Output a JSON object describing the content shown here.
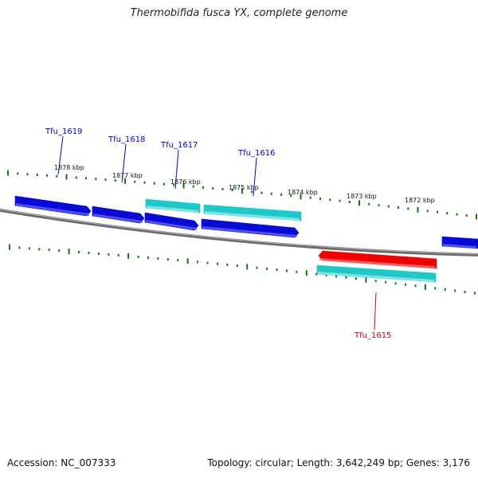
{
  "title": "Thermobifida fusca YX, complete genome",
  "footer": {
    "accession": "Accession: NC_007333",
    "topology": "Topology: circular; Length: 3,642,249 bp; Genes: 3,176"
  },
  "colors": {
    "forward_cds": "#0a0ad6",
    "forward_other": "#1fc7c7",
    "reverse_cds": "#ee0000",
    "reverse_other": "#1fc7c7",
    "ticks": "#117711",
    "backbone": "#808080",
    "label_forward": "#0000cc",
    "label_reverse": "#cc0000"
  },
  "scale_labels": [
    "1878 kbp",
    "1877 kbp",
    "1876 kbp",
    "1875 kbp",
    "1874 kbp",
    "1873 kbp",
    "1872 kbp"
  ],
  "gene_labels": [
    {
      "name": "Tfu_1619",
      "strand": "forward"
    },
    {
      "name": "Tfu_1618",
      "strand": "forward"
    },
    {
      "name": "Tfu_1617",
      "strand": "forward"
    },
    {
      "name": "Tfu_1616",
      "strand": "forward"
    },
    {
      "name": "Tfu_1615",
      "strand": "reverse"
    }
  ]
}
